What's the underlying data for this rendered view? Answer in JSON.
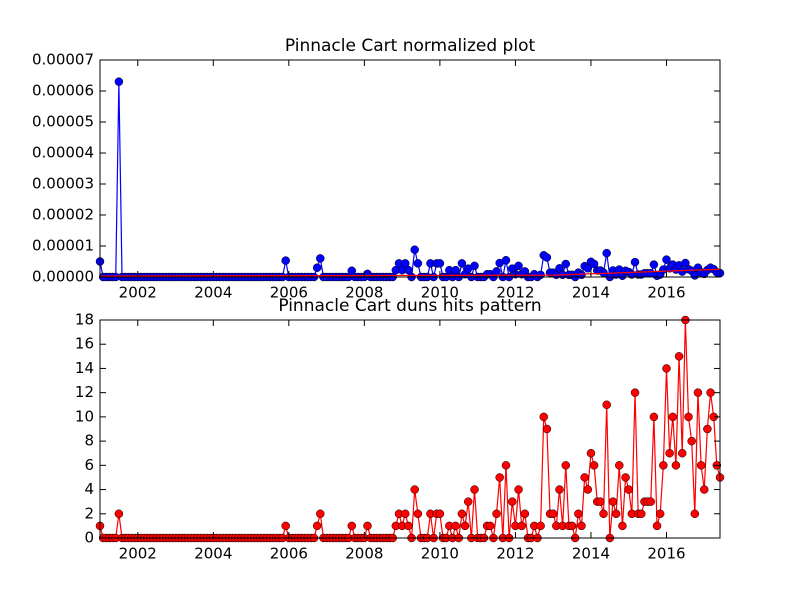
{
  "chart_data": [
    {
      "type": "line",
      "title": "Pinnacle Cart normalized plot",
      "x": [
        2001.0,
        2001.083,
        2001.167,
        2001.25,
        2001.333,
        2001.417,
        2001.5,
        2001.583,
        2001.667,
        2001.75,
        2001.833,
        2001.917,
        2002.0,
        2002.083,
        2002.167,
        2002.25,
        2002.333,
        2002.417,
        2002.5,
        2002.583,
        2002.667,
        2002.75,
        2002.833,
        2002.917,
        2003.0,
        2003.083,
        2003.167,
        2003.25,
        2003.333,
        2003.417,
        2003.5,
        2003.583,
        2003.667,
        2003.75,
        2003.833,
        2003.917,
        2004.0,
        2004.083,
        2004.167,
        2004.25,
        2004.333,
        2004.417,
        2004.5,
        2004.583,
        2004.667,
        2004.75,
        2004.833,
        2004.917,
        2005.0,
        2005.083,
        2005.167,
        2005.25,
        2005.333,
        2005.417,
        2005.5,
        2005.583,
        2005.667,
        2005.75,
        2005.833,
        2005.917,
        2006.0,
        2006.083,
        2006.167,
        2006.25,
        2006.333,
        2006.417,
        2006.5,
        2006.583,
        2006.667,
        2006.75,
        2006.833,
        2006.917,
        2007.0,
        2007.083,
        2007.167,
        2007.25,
        2007.333,
        2007.417,
        2007.5,
        2007.583,
        2007.667,
        2007.75,
        2007.833,
        2007.917,
        2008.0,
        2008.083,
        2008.167,
        2008.25,
        2008.333,
        2008.417,
        2008.5,
        2008.583,
        2008.667,
        2008.75,
        2008.833,
        2008.917,
        2009.0,
        2009.083,
        2009.167,
        2009.25,
        2009.333,
        2009.417,
        2009.5,
        2009.583,
        2009.667,
        2009.75,
        2009.833,
        2009.917,
        2010.0,
        2010.083,
        2010.167,
        2010.25,
        2010.333,
        2010.417,
        2010.5,
        2010.583,
        2010.667,
        2010.75,
        2010.833,
        2010.917,
        2011.0,
        2011.083,
        2011.167,
        2011.25,
        2011.333,
        2011.417,
        2011.5,
        2011.583,
        2011.667,
        2011.75,
        2011.833,
        2011.917,
        2012.0,
        2012.083,
        2012.167,
        2012.25,
        2012.333,
        2012.417,
        2012.5,
        2012.583,
        2012.667,
        2012.75,
        2012.833,
        2012.917,
        2013.0,
        2013.083,
        2013.167,
        2013.25,
        2013.333,
        2013.417,
        2013.5,
        2013.583,
        2013.667,
        2013.75,
        2013.833,
        2013.917,
        2014.0,
        2014.083,
        2014.167,
        2014.25,
        2014.333,
        2014.417,
        2014.5,
        2014.583,
        2014.667,
        2014.75,
        2014.833,
        2014.917,
        2015.0,
        2015.083,
        2015.167,
        2015.25,
        2015.333,
        2015.417,
        2015.5,
        2015.583,
        2015.667,
        2015.75,
        2015.833,
        2015.917,
        2016.0,
        2016.083,
        2016.167,
        2016.25,
        2016.333,
        2016.417,
        2016.5,
        2016.583,
        2016.667,
        2016.75,
        2016.833,
        2016.917,
        2017.0,
        2017.083,
        2017.167,
        2017.25,
        2017.333,
        2017.417
      ],
      "series": [
        {
          "color": "#0000ff",
          "marker": true,
          "values": [
            5e-06,
            0,
            0,
            0,
            0,
            0,
            6.3e-05,
            0,
            0,
            0,
            0,
            0,
            0,
            0,
            0,
            0,
            0,
            0,
            0,
            0,
            0,
            0,
            0,
            0,
            0,
            0,
            0,
            0,
            0,
            0,
            0,
            0,
            0,
            0,
            0,
            0,
            0,
            0,
            0,
            0,
            0,
            0,
            0,
            0,
            0,
            0,
            0,
            0,
            0,
            0,
            0,
            0,
            0,
            0,
            0,
            0,
            0,
            0,
            0,
            5.3e-06,
            0,
            0,
            0,
            0,
            0,
            0,
            0,
            0,
            0,
            3e-06,
            6e-06,
            0,
            0,
            0,
            0,
            0,
            0,
            0,
            0,
            0,
            2e-06,
            0,
            0,
            0,
            0,
            1e-06,
            0,
            0,
            0,
            0,
            0,
            0,
            0,
            0,
            2.2e-06,
            4.4e-06,
            2.2e-06,
            4.4e-06,
            2.2e-06,
            0,
            8.8e-06,
            4.4e-06,
            0,
            0,
            0,
            4.4e-06,
            0,
            4.4e-06,
            4.4e-06,
            0,
            0,
            2.2e-06,
            0,
            2.2e-06,
            0,
            4.4e-06,
            9e-07,
            2.7e-06,
            0,
            3.6e-06,
            0,
            0,
            0,
            9e-07,
            9e-07,
            0,
            1.8e-06,
            4.5e-06,
            0,
            5.4e-06,
            0,
            2.7e-06,
            9e-07,
            3.6e-06,
            9e-07,
            1.8e-06,
            0,
            0,
            9e-07,
            0,
            7e-07,
            7e-06,
            6.3e-06,
            1.4e-06,
            1.4e-06,
            7e-07,
            2.8e-06,
            7e-07,
            4.2e-06,
            7e-07,
            7e-07,
            0,
            1.4e-06,
            7e-07,
            3.5e-06,
            2.8e-06,
            4.9e-06,
            4.2e-06,
            2.1e-06,
            2.1e-06,
            1.4e-06,
            7.7e-06,
            0,
            2.1e-06,
            8e-07,
            2.4e-06,
            4e-07,
            2e-06,
            1.6e-06,
            8e-07,
            4.8e-06,
            8e-07,
            8e-07,
            1.2e-06,
            1.2e-06,
            1.2e-06,
            4e-06,
            4e-07,
            8e-07,
            2.4e-06,
            5.6e-06,
            2.8e-06,
            4e-06,
            2.4e-06,
            3.75e-06,
            1.75e-06,
            4.5e-06,
            2.5e-06,
            2e-06,
            5e-07,
            3e-06,
            1.5e-06,
            1e-06,
            2.25e-06,
            3e-06,
            2.5e-06,
            1.5e-06,
            1.25e-06
          ]
        },
        {
          "color": "#ff0000",
          "marker": false,
          "x": [
            2001.0,
            2013.0,
            2017.417
          ],
          "values": [
            3e-07,
            6e-07,
            2.5e-06
          ]
        }
      ],
      "xlim": [
        2001.0,
        2017.417
      ],
      "xticks": [
        2002,
        2004,
        2006,
        2008,
        2010,
        2012,
        2014,
        2016
      ],
      "ylim": [
        0,
        7e-05
      ],
      "yticks": [
        {
          "value": 0,
          "label": "0.00000"
        },
        {
          "value": 1e-05,
          "label": "0.00001"
        },
        {
          "value": 2e-05,
          "label": "0.00002"
        },
        {
          "value": 3e-05,
          "label": "0.00003"
        },
        {
          "value": 4e-05,
          "label": "0.00004"
        },
        {
          "value": 5e-05,
          "label": "0.00005"
        },
        {
          "value": 6e-05,
          "label": "0.00006"
        },
        {
          "value": 7e-05,
          "label": "0.00007"
        }
      ]
    },
    {
      "type": "line",
      "title": "Pinnacle Cart duns hits pattern",
      "x": [
        2001.0,
        2001.083,
        2001.167,
        2001.25,
        2001.333,
        2001.417,
        2001.5,
        2001.583,
        2001.667,
        2001.75,
        2001.833,
        2001.917,
        2002.0,
        2002.083,
        2002.167,
        2002.25,
        2002.333,
        2002.417,
        2002.5,
        2002.583,
        2002.667,
        2002.75,
        2002.833,
        2002.917,
        2003.0,
        2003.083,
        2003.167,
        2003.25,
        2003.333,
        2003.417,
        2003.5,
        2003.583,
        2003.667,
        2003.75,
        2003.833,
        2003.917,
        2004.0,
        2004.083,
        2004.167,
        2004.25,
        2004.333,
        2004.417,
        2004.5,
        2004.583,
        2004.667,
        2004.75,
        2004.833,
        2004.917,
        2005.0,
        2005.083,
        2005.167,
        2005.25,
        2005.333,
        2005.417,
        2005.5,
        2005.583,
        2005.667,
        2005.75,
        2005.833,
        2005.917,
        2006.0,
        2006.083,
        2006.167,
        2006.25,
        2006.333,
        2006.417,
        2006.5,
        2006.583,
        2006.667,
        2006.75,
        2006.833,
        2006.917,
        2007.0,
        2007.083,
        2007.167,
        2007.25,
        2007.333,
        2007.417,
        2007.5,
        2007.583,
        2007.667,
        2007.75,
        2007.833,
        2007.917,
        2008.0,
        2008.083,
        2008.167,
        2008.25,
        2008.333,
        2008.417,
        2008.5,
        2008.583,
        2008.667,
        2008.75,
        2008.833,
        2008.917,
        2009.0,
        2009.083,
        2009.167,
        2009.25,
        2009.333,
        2009.417,
        2009.5,
        2009.583,
        2009.667,
        2009.75,
        2009.833,
        2009.917,
        2010.0,
        2010.083,
        2010.167,
        2010.25,
        2010.333,
        2010.417,
        2010.5,
        2010.583,
        2010.667,
        2010.75,
        2010.833,
        2010.917,
        2011.0,
        2011.083,
        2011.167,
        2011.25,
        2011.333,
        2011.417,
        2011.5,
        2011.583,
        2011.667,
        2011.75,
        2011.833,
        2011.917,
        2012.0,
        2012.083,
        2012.167,
        2012.25,
        2012.333,
        2012.417,
        2012.5,
        2012.583,
        2012.667,
        2012.75,
        2012.833,
        2012.917,
        2013.0,
        2013.083,
        2013.167,
        2013.25,
        2013.333,
        2013.417,
        2013.5,
        2013.583,
        2013.667,
        2013.75,
        2013.833,
        2013.917,
        2014.0,
        2014.083,
        2014.167,
        2014.25,
        2014.333,
        2014.417,
        2014.5,
        2014.583,
        2014.667,
        2014.75,
        2014.833,
        2014.917,
        2015.0,
        2015.083,
        2015.167,
        2015.25,
        2015.333,
        2015.417,
        2015.5,
        2015.583,
        2015.667,
        2015.75,
        2015.833,
        2015.917,
        2016.0,
        2016.083,
        2016.167,
        2016.25,
        2016.333,
        2016.417,
        2016.5,
        2016.583,
        2016.667,
        2016.75,
        2016.833,
        2016.917,
        2017.0,
        2017.083,
        2017.167,
        2017.25,
        2017.333,
        2017.417
      ],
      "series": [
        {
          "color": "#ff0000",
          "marker": true,
          "values": [
            1,
            0,
            0,
            0,
            0,
            0,
            2,
            0,
            0,
            0,
            0,
            0,
            0,
            0,
            0,
            0,
            0,
            0,
            0,
            0,
            0,
            0,
            0,
            0,
            0,
            0,
            0,
            0,
            0,
            0,
            0,
            0,
            0,
            0,
            0,
            0,
            0,
            0,
            0,
            0,
            0,
            0,
            0,
            0,
            0,
            0,
            0,
            0,
            0,
            0,
            0,
            0,
            0,
            0,
            0,
            0,
            0,
            0,
            0,
            1,
            0,
            0,
            0,
            0,
            0,
            0,
            0,
            0,
            0,
            1,
            2,
            0,
            0,
            0,
            0,
            0,
            0,
            0,
            0,
            0,
            1,
            0,
            0,
            0,
            0,
            1,
            0,
            0,
            0,
            0,
            0,
            0,
            0,
            0,
            1,
            2,
            1,
            2,
            1,
            0,
            4,
            2,
            0,
            0,
            0,
            2,
            0,
            2,
            2,
            0,
            0,
            1,
            0,
            1,
            0,
            2,
            1,
            3,
            0,
            4,
            0,
            0,
            0,
            1,
            1,
            0,
            2,
            5,
            0,
            6,
            0,
            3,
            1,
            4,
            1,
            2,
            0,
            0,
            1,
            0,
            1,
            10,
            9,
            2,
            2,
            1,
            4,
            1,
            6,
            1,
            1,
            0,
            2,
            1,
            5,
            4,
            7,
            6,
            3,
            3,
            2,
            11,
            0,
            3,
            2,
            6,
            1,
            5,
            4,
            2,
            12,
            2,
            2,
            3,
            3,
            3,
            10,
            1,
            2,
            6,
            14,
            7,
            10,
            6,
            15,
            7,
            18,
            10,
            8,
            2,
            12,
            6,
            4,
            9,
            12,
            10,
            6,
            5
          ]
        }
      ],
      "xlim": [
        2001.0,
        2017.417
      ],
      "xticks": [
        2002,
        2004,
        2006,
        2008,
        2010,
        2012,
        2014,
        2016
      ],
      "ylim": [
        0,
        18
      ],
      "yticks": [
        0,
        2,
        4,
        6,
        8,
        10,
        12,
        14,
        16,
        18
      ]
    }
  ]
}
